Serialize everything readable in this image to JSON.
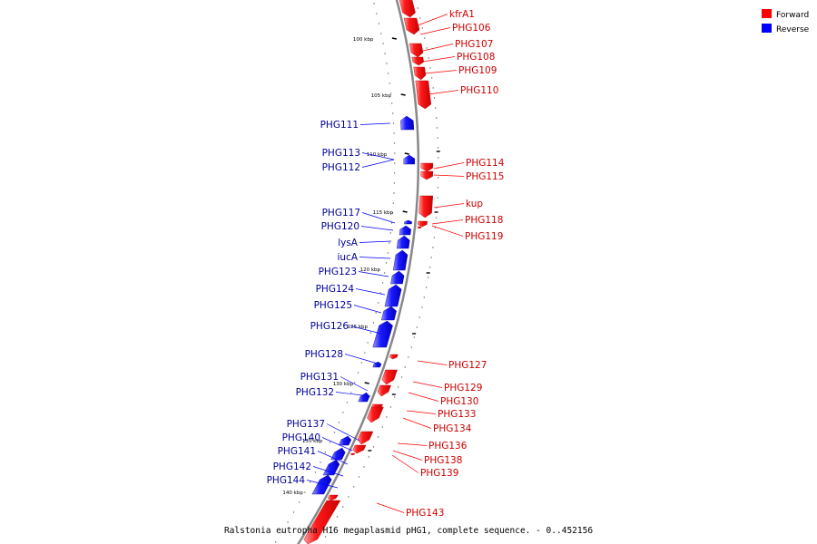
{
  "caption": "Ralstonia eutropha H16 megaplasmid pHG1, complete sequence. - 0..452156",
  "legend": [
    {
      "label": "Forward",
      "color": "#ff0000"
    },
    {
      "label": "Reverse",
      "color": "#0000ff"
    }
  ],
  "colors": {
    "forward": "#ff0000",
    "reverse": "#0000ff",
    "forward_label": "#cc0000",
    "reverse_label": "#000099",
    "backbone": "#888888"
  },
  "scale_labels": [
    "100 kbp",
    "105 kbp",
    "110 kbp",
    "115 kbp",
    "120 kbp",
    "125 kbp",
    "130 kbp",
    "135 kbp",
    "140 kbp"
  ],
  "forward_genes": [
    "kfrA1",
    "PHG106",
    "PHG107",
    "PHG108",
    "PHG109",
    "PHG110",
    "PHG114",
    "PHG115",
    "kup",
    "PHG118",
    "PHG119",
    "PHG127",
    "PHG129",
    "PHG130",
    "PHG133",
    "PHG134",
    "PHG136",
    "PHG138",
    "PHG139",
    "PHG143"
  ],
  "reverse_genes": [
    "PHG111",
    "PHG113",
    "PHG112",
    "PHG117",
    "PHG120",
    "lysA",
    "iucA",
    "PHG123",
    "PHG124",
    "PHG125",
    "PHG126",
    "PHG128",
    "PHG131",
    "PHG132",
    "PHG137",
    "PHG140",
    "PHG141",
    "PHG142",
    "PHG144"
  ]
}
